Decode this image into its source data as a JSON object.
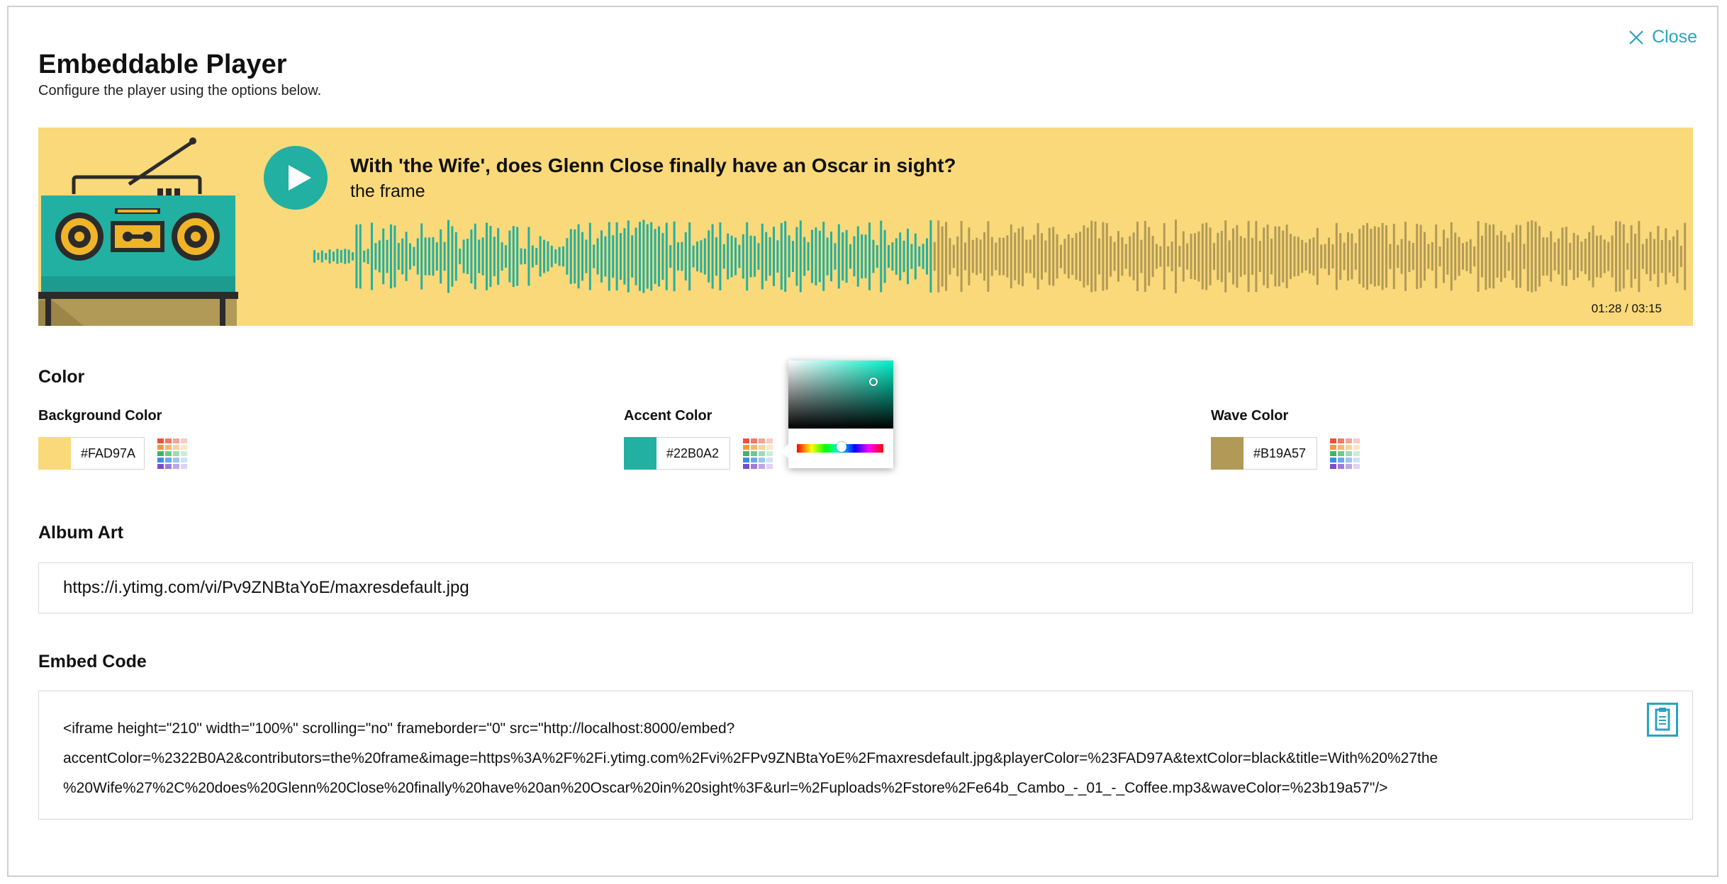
{
  "header": {
    "title": "Embeddable Player",
    "subtitle": "Configure the player using the options below.",
    "close_label": "Close"
  },
  "player": {
    "track_title": "With 'the Wife', does Glenn Close finally have an Oscar in sight?",
    "artist": "the frame",
    "time_readout": "01:28 / 03:15",
    "progress": 0.451
  },
  "color_section": {
    "heading": "Color",
    "background": {
      "label": "Background Color",
      "value": "#FAD97A"
    },
    "accent": {
      "label": "Accent Color",
      "value": "#22B0A2"
    },
    "wave": {
      "label": "Wave Color",
      "value": "#B19A57"
    }
  },
  "colors": {
    "background": "#FAD97A",
    "accent": "#22B0A2",
    "wave": "#B19A57",
    "link": "#2AA3C0"
  },
  "album_art": {
    "heading": "Album Art",
    "value": "https://i.ytimg.com/vi/Pv9ZNBtaYoE/maxresdefault.jpg"
  },
  "embed": {
    "heading": "Embed Code",
    "lines": [
      "<iframe height=\"210\" width=\"100%\" scrolling=\"no\" frameborder=\"0\" src=\"http://localhost:8000/embed?",
      "accentColor=%2322B0A2&contributors=the%20frame&image=https%3A%2F%2Fi.ytimg.com%2Fvi%2FPv9ZNBtaYoE%2Fmaxresdefault.jpg&playerColor=%23FAD97A&textColor=black&title=With%20%27the",
      "%20Wife%27%2C%20does%20Glenn%20Close%20finally%20have%20an%20Oscar%20in%20sight%3F&url=%2Fuploads%2Fstore%2Fe64b_Cambo_-_01_-_Coffee.mp3&waveColor=%23b19a57\"/>"
    ]
  },
  "icons": {
    "close": "close-x-icon",
    "play": "play-icon",
    "palette": "palette-grid-icon",
    "copy": "clipboard-icon"
  }
}
